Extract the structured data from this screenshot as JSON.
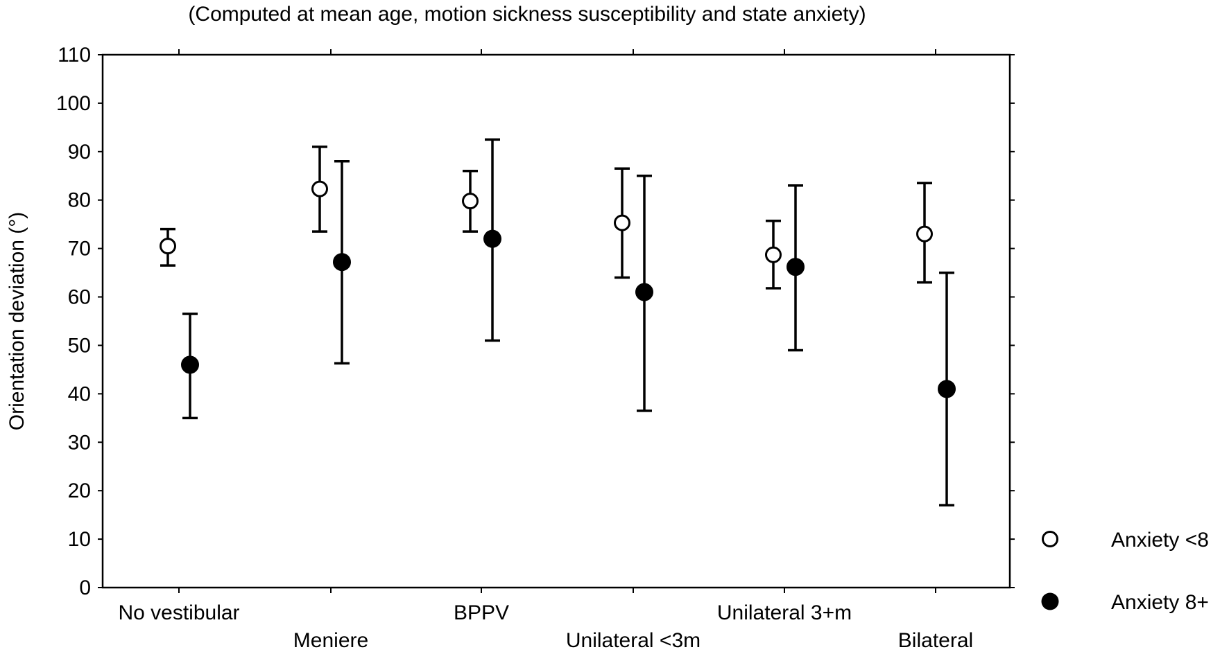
{
  "chart_data": {
    "type": "scatter",
    "subtitle": "(Computed at mean age, motion sickness susceptibility and state anxiety)",
    "ylabel": "Orientation deviation (°)",
    "xlabel": "",
    "ylim": [
      0,
      110
    ],
    "yticks": [
      0,
      10,
      20,
      30,
      40,
      50,
      60,
      70,
      80,
      90,
      100,
      110
    ],
    "categories": [
      "No vestibular",
      "Meniere",
      "BPPV",
      "Unilateral <3m",
      "Unilateral 3+m",
      "Bilateral"
    ],
    "grid": false,
    "legend_position": "right-bottom",
    "series": [
      {
        "name": "Anxiety <8",
        "marker": "open-circle",
        "color": "#000000",
        "values": [
          70.5,
          82.3,
          79.8,
          75.3,
          68.7,
          73.0
        ],
        "lower": [
          66.5,
          73.5,
          73.5,
          64.0,
          61.8,
          63.0
        ],
        "upper": [
          74.0,
          91.0,
          86.0,
          86.5,
          75.7,
          83.5
        ]
      },
      {
        "name": "Anxiety 8+",
        "marker": "filled-circle",
        "color": "#000000",
        "values": [
          46.0,
          67.2,
          72.0,
          61.0,
          66.2,
          41.0
        ],
        "lower": [
          35.0,
          46.3,
          51.0,
          36.5,
          49.0,
          17.0
        ],
        "upper": [
          56.5,
          88.0,
          92.5,
          85.0,
          83.0,
          65.0
        ]
      }
    ]
  }
}
